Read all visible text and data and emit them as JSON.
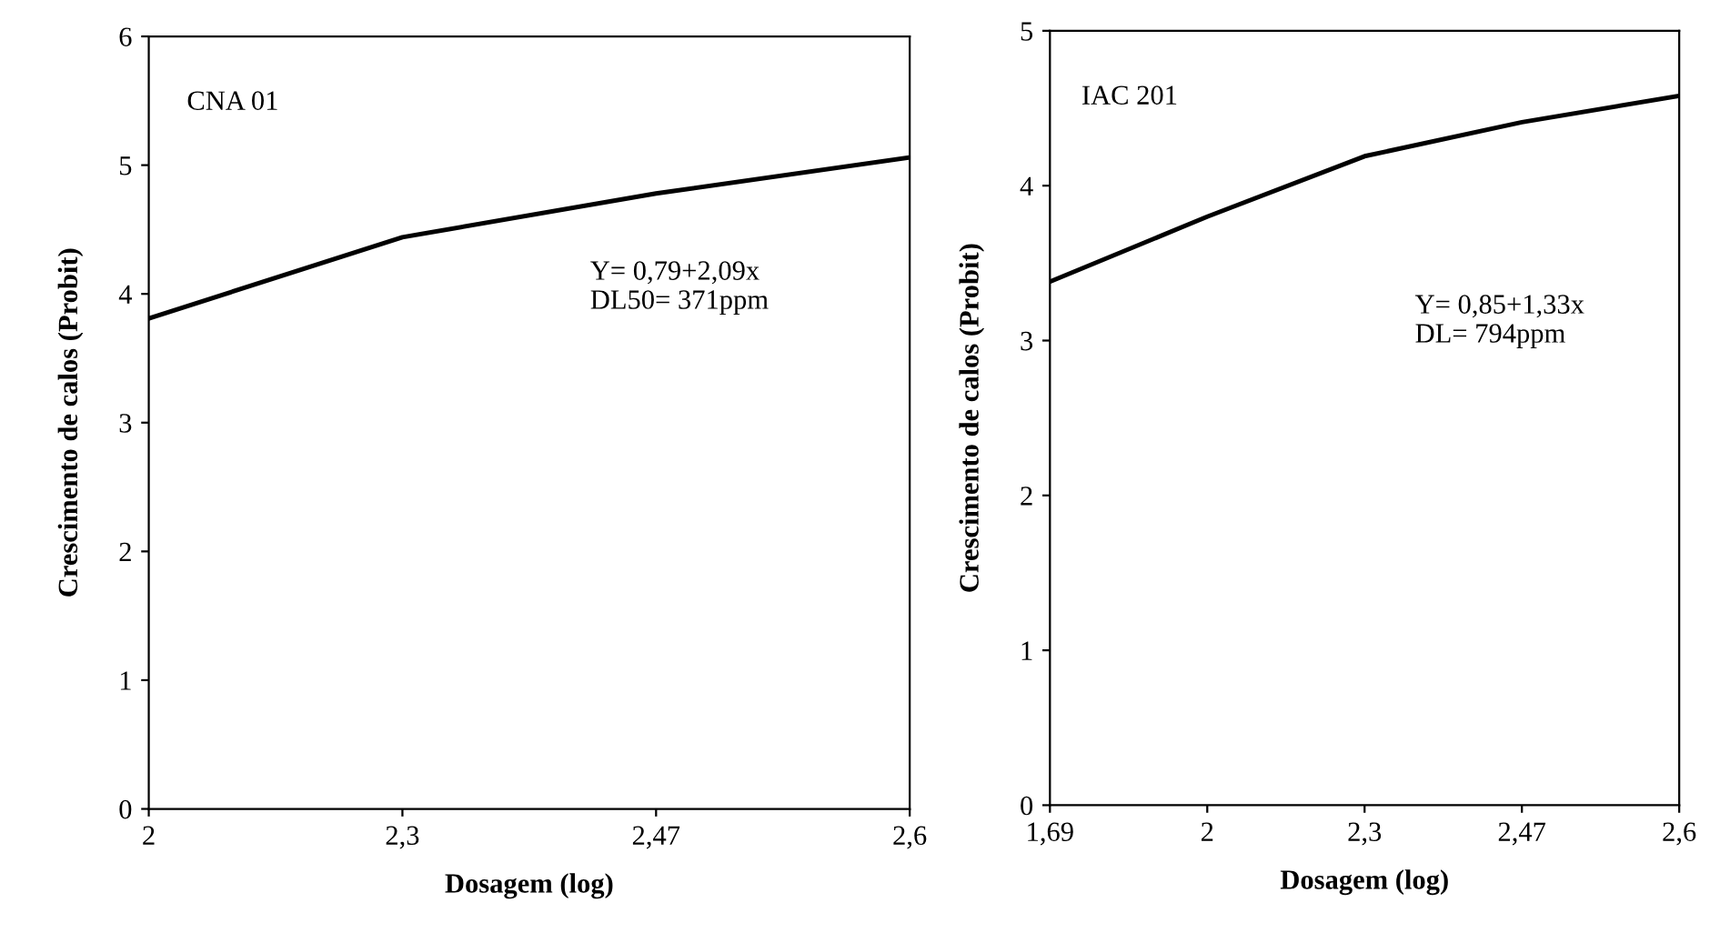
{
  "chart_data": [
    {
      "type": "line",
      "xlabel": "Dosagem (log)",
      "ylabel": "Crescimento de calos (Probit)",
      "categories": [
        "2",
        "2,3",
        "2,47",
        "2,6"
      ],
      "series": [
        {
          "color": "#000000",
          "values": [
            3.81,
            4.44,
            4.78,
            5.06
          ]
        }
      ],
      "ylim": [
        0,
        6
      ],
      "yticks": [
        0,
        1,
        2,
        3,
        4,
        5,
        6
      ],
      "grid": false,
      "legend": false,
      "marker": "none",
      "line_style": "solid",
      "annotations": [
        "CNA 01",
        "Y= 0,79+2,09x\nDL50= 371ppm"
      ]
    },
    {
      "type": "line",
      "xlabel": "Dosagem (log)",
      "ylabel": "Crescimento de calos (Probit)",
      "categories": [
        "1,69",
        "2",
        "2,3",
        "2,47",
        "2,6"
      ],
      "series": [
        {
          "color": "#000000",
          "values": [
            3.38,
            3.8,
            4.19,
            4.41,
            4.58
          ]
        }
      ],
      "ylim": [
        0,
        5
      ],
      "yticks": [
        0,
        1,
        2,
        3,
        4,
        5
      ],
      "grid": false,
      "legend": false,
      "marker": "none",
      "line_style": "solid",
      "annotations": [
        "IAC 201",
        "Y= 0,85+1,33x\nDL= 794ppm"
      ]
    }
  ]
}
